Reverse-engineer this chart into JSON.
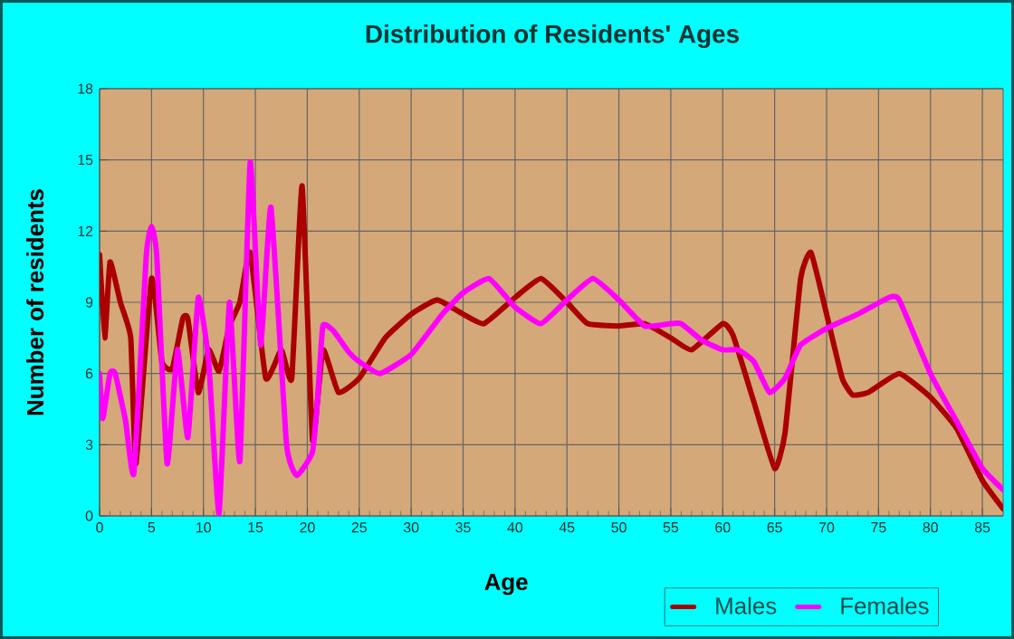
{
  "chart_data": {
    "type": "line",
    "title": "Distribution of Residents' Ages",
    "xlabel": "Age",
    "ylabel": "Number of residents",
    "xlim": [
      0,
      87
    ],
    "ylim": [
      0,
      18
    ],
    "xticks": [
      0,
      5,
      10,
      15,
      20,
      25,
      30,
      35,
      40,
      45,
      50,
      55,
      60,
      65,
      70,
      75,
      80,
      85
    ],
    "yticks": [
      0,
      3,
      6,
      9,
      12,
      15,
      18
    ],
    "grid": true,
    "legend": "bottom right",
    "marker": "none",
    "line_style": "solid",
    "series": [
      {
        "name": "Males",
        "color": "#aa0000",
        "x": [
          0,
          0.5,
          1,
          2,
          3,
          3.5,
          5,
          6,
          7,
          8,
          8.5,
          9.5,
          10.5,
          11.5,
          12.5,
          13.5,
          14.5,
          16,
          17.5,
          18.5,
          19.5,
          20.5,
          21.5,
          23,
          25,
          27.5,
          30,
          32.5,
          35,
          37,
          40,
          42.5,
          45,
          47,
          50,
          52.5,
          55,
          57,
          60,
          61,
          63,
          65,
          66,
          67.5,
          68.5,
          70,
          71.5,
          72.5,
          74,
          77,
          80,
          82.5,
          85,
          87
        ],
        "values": [
          11,
          7.5,
          10.7,
          9,
          7.5,
          2.2,
          10,
          6.5,
          6.2,
          8.3,
          8.3,
          5.2,
          7,
          6.1,
          8,
          9,
          11.1,
          5.8,
          7,
          5.8,
          13.9,
          3.2,
          7,
          5.2,
          5.8,
          7.5,
          8.5,
          9.1,
          8.5,
          8.1,
          9.2,
          10,
          9,
          8.1,
          8,
          8.1,
          7.5,
          7,
          8.1,
          7.6,
          4.8,
          2,
          3.5,
          10,
          11.1,
          8.5,
          5.8,
          5.1,
          5.2,
          6,
          5,
          3.7,
          1.5,
          0.3
        ]
      },
      {
        "name": "Females",
        "color": "#ff00ff",
        "x": [
          0,
          0.3,
          1,
          1.5,
          2.5,
          3.3,
          4.5,
          5,
          5.5,
          6.5,
          7.5,
          8.5,
          9.5,
          10.5,
          11.5,
          12.5,
          13.5,
          14.5,
          15.5,
          16.5,
          18,
          19,
          20.5,
          21,
          21.5,
          22.5,
          24,
          25,
          27,
          30,
          33,
          35,
          37.5,
          40,
          42.5,
          45,
          47.5,
          50,
          52.5,
          55,
          56,
          58,
          60,
          61.5,
          63,
          64.5,
          66,
          67.5,
          70,
          73,
          76,
          77,
          80,
          82.5,
          85,
          87
        ],
        "values": [
          6,
          4.1,
          6,
          6,
          4,
          1.8,
          11,
          12.2,
          11,
          2.2,
          7,
          3.3,
          9.2,
          6.5,
          0.1,
          9,
          2.3,
          14.9,
          7.2,
          13,
          3,
          1.7,
          2.7,
          5,
          8,
          7.8,
          6.9,
          6.5,
          6,
          6.8,
          8.5,
          9.4,
          10,
          8.8,
          8.1,
          9.1,
          10,
          9.1,
          8,
          8.1,
          8.1,
          7.4,
          7,
          7,
          6.5,
          5.2,
          5.8,
          7.2,
          7.9,
          8.5,
          9.2,
          9.1,
          6,
          4,
          2,
          1.1
        ]
      }
    ]
  }
}
